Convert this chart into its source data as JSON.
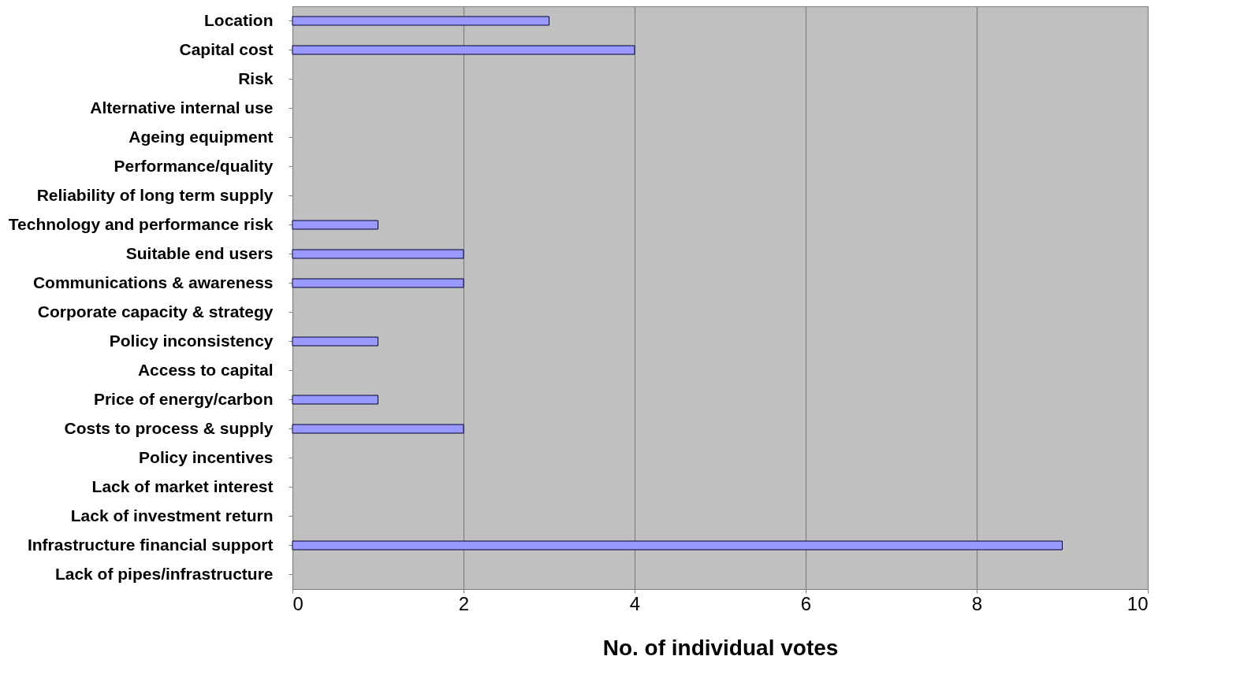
{
  "chart_data": {
    "type": "bar",
    "orientation": "horizontal",
    "xlabel": "No. of individual votes",
    "categories": [
      "Location",
      "Capital cost",
      "Risk",
      "Alternative internal use",
      "Ageing equipment",
      "Performance/quality",
      "Reliability of long term supply",
      "Technology and performance risk",
      "Suitable end users",
      "Communications & awareness",
      "Corporate capacity & strategy",
      "Policy inconsistency",
      "Access to capital",
      "Price of energy/carbon",
      "Costs to process & supply",
      "Policy incentives",
      "Lack of market interest",
      "Lack of investment return",
      "Infrastructure financial support",
      "Lack of pipes/infrastructure"
    ],
    "values": [
      3,
      4,
      0,
      0,
      0,
      0,
      0,
      1,
      2,
      2,
      0,
      1,
      0,
      1,
      2,
      0,
      0,
      0,
      9,
      0
    ],
    "color": "#9999ff",
    "xlim": [
      0,
      10
    ],
    "xticks": [
      0,
      2,
      4,
      6,
      8,
      10
    ],
    "grid": "x"
  }
}
